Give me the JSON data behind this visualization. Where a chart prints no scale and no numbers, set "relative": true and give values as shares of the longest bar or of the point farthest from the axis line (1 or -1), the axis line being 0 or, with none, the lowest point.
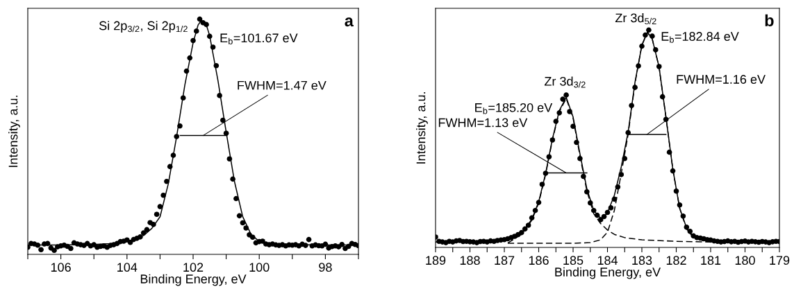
{
  "chart_data": [
    {
      "type": "scatter",
      "xlabel": "Binding Energy, eV",
      "ylabel": "Intensity, a.u.",
      "relative": true,
      "tick_labels": "x",
      "grid": false,
      "xlim": [
        107,
        97
      ],
      "xticks": [
        {
          "value": 107,
          "label": null
        },
        106,
        {
          "value": 105,
          "label": null
        },
        104,
        {
          "value": 103,
          "label": null
        },
        102,
        {
          "value": 101,
          "label": null
        },
        100,
        {
          "value": 99,
          "label": null
        },
        98,
        {
          "value": 97,
          "label": null
        }
      ],
      "annotations": [
        "a",
        "Si 2p$_{3/2}$, Si 2p$_{1/2}$",
        "E$_{b}$=101.67 eV",
        {
          "text": "FWHM=1.47 eV",
          "x": 101.7,
          "y": 0.505
        }
      ],
      "series": [
        {
          "marker": "circle",
          "color": "#000000",
          "x": [
            107.0,
            106.9,
            106.8,
            106.7,
            106.6,
            106.5,
            106.4,
            106.3,
            106.2,
            106.1,
            106.0,
            105.9,
            105.8,
            105.7,
            105.6,
            105.5,
            105.4,
            105.3,
            105.2,
            105.1,
            105.0,
            104.9,
            104.8,
            104.7,
            104.6,
            104.5,
            104.4,
            104.3,
            104.2,
            104.1,
            104.0,
            103.9,
            103.8,
            103.7,
            103.6,
            103.5,
            103.4,
            103.3,
            103.2,
            103.1,
            103.0,
            102.9,
            102.8,
            102.7,
            102.6,
            102.5,
            102.4,
            102.3,
            102.2,
            102.1,
            102.0,
            101.9,
            101.8,
            101.7,
            101.6,
            101.5,
            101.4,
            101.3,
            101.2,
            101.1,
            101.0,
            100.9,
            100.8,
            100.7,
            100.6,
            100.5,
            100.4,
            100.3,
            100.2,
            100.1,
            100.0,
            99.9,
            99.8,
            99.7,
            99.6,
            99.5,
            99.4,
            99.3,
            99.2,
            99.1,
            99.0,
            98.9,
            98.8,
            98.7,
            98.6,
            98.5,
            98.4,
            98.3,
            98.2,
            98.1,
            98.0,
            97.9,
            97.8,
            97.7,
            97.6,
            97.5,
            97.4,
            97.3,
            97.2,
            97.1,
            97.0
          ],
          "values": [
            0.03,
            0.046,
            0.044,
            0.039,
            0.02,
            0.044,
            0.046,
            0.027,
            0.017,
            0.032,
            0.036,
            0.039,
            0.034,
            0.025,
            0.049,
            0.044,
            0.041,
            0.038,
            0.046,
            0.036,
            0.041,
            0.03,
            0.034,
            0.036,
            0.03,
            0.038,
            0.041,
            0.046,
            0.054,
            0.056,
            0.061,
            0.051,
            0.063,
            0.068,
            0.074,
            0.091,
            0.105,
            0.135,
            0.127,
            0.17,
            0.203,
            0.251,
            0.31,
            0.373,
            0.421,
            0.501,
            0.546,
            0.665,
            0.779,
            0.835,
            0.909,
            0.949,
            1.0,
            0.985,
            0.977,
            0.927,
            0.881,
            0.802,
            0.675,
            0.57,
            0.515,
            0.406,
            0.32,
            0.237,
            0.164,
            0.134,
            0.112,
            0.083,
            0.073,
            0.049,
            0.054,
            0.056,
            0.044,
            0.041,
            0.044,
            0.04,
            0.038,
            0.041,
            0.036,
            0.04,
            0.039,
            0.041,
            0.036,
            0.043,
            0.038,
            0.063,
            0.036,
            0.04,
            0.037,
            0.036,
            0.043,
            0.027,
            0.033,
            0.036,
            0.032,
            0.042,
            0.025,
            0.034,
            0.046,
            0.042,
            0.037
          ]
        },
        {
          "type": "line",
          "line_style": "solid",
          "color": "#000000",
          "x": [
            107,
            106,
            105,
            104.5,
            104,
            103.75,
            103.5,
            103.25,
            103,
            102.75,
            102.5,
            102.25,
            102,
            101.85,
            101.75,
            101.6,
            101.5,
            101.25,
            101,
            100.75,
            100.5,
            100.25,
            100,
            99.5,
            98,
            97
          ],
          "values": [
            0.04,
            0.04,
            0.042,
            0.046,
            0.055,
            0.065,
            0.08,
            0.11,
            0.16,
            0.3,
            0.5,
            0.72,
            0.9,
            0.975,
            0.995,
            0.975,
            0.93,
            0.74,
            0.52,
            0.31,
            0.16,
            0.085,
            0.055,
            0.042,
            0.04,
            0.04
          ]
        },
        {
          "type": "line",
          "line_style": "solid",
          "color": "#000000",
          "x": [
            102.39,
            100.98
          ],
          "values": [
            0.505,
            0.505
          ]
        }
      ]
    },
    {
      "type": "scatter",
      "xlabel": "Binding Energy, eV",
      "ylabel": "Intensity, a.u.",
      "relative": true,
      "tick_labels": "x",
      "grid": false,
      "xlim": [
        189,
        179
      ],
      "xticks": [
        189,
        {
          "value": 188.5,
          "label": null
        },
        188,
        {
          "value": 187.5,
          "label": null
        },
        187,
        {
          "value": 186.5,
          "label": null
        },
        186,
        {
          "value": 185.5,
          "label": null
        },
        185,
        {
          "value": 184.5,
          "label": null
        },
        184,
        {
          "value": 183.5,
          "label": null
        },
        183,
        {
          "value": 182.5,
          "label": null
        },
        182,
        {
          "value": 181.5,
          "label": null
        },
        181,
        {
          "value": 180.5,
          "label": null
        },
        180,
        {
          "value": 179.5,
          "label": null
        },
        179
      ],
      "annotations": [
        "b",
        "Zr 3d$_{5/2}$",
        "E$_{b}$=182.84 eV",
        "Zr 3d$_{3/2}$",
        "E$_{b}$=185.20 eV",
        {
          "text": "FWHM=1.13 eV",
          "x": 185.2,
          "y": 0.343
        },
        {
          "text": "FWHM=1.16 eV",
          "x": 182.85,
          "y": 0.52
        }
      ],
      "series": [
        {
          "marker": "circle",
          "color": "#000000",
          "x": [
            189.0,
            188.9,
            188.8,
            188.7,
            188.6,
            188.5,
            188.4,
            188.3,
            188.2,
            188.1,
            188.0,
            187.9,
            187.8,
            187.7,
            187.6,
            187.5,
            187.4,
            187.3,
            187.2,
            187.1,
            187.0,
            186.9,
            186.8,
            186.7,
            186.6,
            186.5,
            186.4,
            186.3,
            186.2,
            186.1,
            186.0,
            185.9,
            185.8,
            185.7,
            185.6,
            185.5,
            185.4,
            185.3,
            185.2,
            185.1,
            185.0,
            184.9,
            184.8,
            184.7,
            184.6,
            184.5,
            184.4,
            184.3,
            184.2,
            184.1,
            184.0,
            183.9,
            183.8,
            183.7,
            183.6,
            183.5,
            183.4,
            183.3,
            183.2,
            183.1,
            183.0,
            182.9,
            182.8,
            182.7,
            182.6,
            182.5,
            182.4,
            182.3,
            182.2,
            182.1,
            182.0,
            181.9,
            181.8,
            181.7,
            181.6,
            181.5,
            181.4,
            181.3,
            181.2,
            181.1,
            181.0,
            180.9,
            180.8,
            180.7,
            180.6,
            180.5,
            180.4,
            180.3,
            180.2,
            180.1,
            180.0,
            179.9,
            179.8,
            179.7,
            179.6,
            179.5,
            179.4,
            179.3,
            179.2,
            179.1,
            179.0
          ],
          "values": [
            0.048,
            0.028,
            0.025,
            0.022,
            0.028,
            0.025,
            0.03,
            0.032,
            0.027,
            0.028,
            0.026,
            0.025,
            0.022,
            0.027,
            0.028,
            0.025,
            0.03,
            0.028,
            0.032,
            0.034,
            0.036,
            0.04,
            0.045,
            0.051,
            0.059,
            0.068,
            0.085,
            0.102,
            0.136,
            0.17,
            0.207,
            0.29,
            0.341,
            0.417,
            0.494,
            0.58,
            0.619,
            0.682,
            0.701,
            0.625,
            0.557,
            0.483,
            0.409,
            0.327,
            0.256,
            0.205,
            0.17,
            0.148,
            0.127,
            0.142,
            0.161,
            0.182,
            0.222,
            0.278,
            0.335,
            0.409,
            0.528,
            0.653,
            0.736,
            0.835,
            0.926,
            0.977,
            1.0,
            0.972,
            0.909,
            0.832,
            0.693,
            0.589,
            0.438,
            0.352,
            0.259,
            0.195,
            0.144,
            0.093,
            0.074,
            0.053,
            0.045,
            0.043,
            0.04,
            0.036,
            0.034,
            0.03,
            0.028,
            0.025,
            0.027,
            0.03,
            0.026,
            0.028,
            0.024,
            0.027,
            0.029,
            0.025,
            0.028,
            0.026,
            0.024,
            0.027,
            0.025,
            0.022,
            0.026,
            0.028,
            0.027
          ]
        },
        {
          "type": "line",
          "line_style": "solid",
          "color": "#000000",
          "x": [
            189,
            188,
            187,
            186.5,
            186.2,
            186,
            185.8,
            185.6,
            185.4,
            185.2,
            185,
            184.8,
            184.6,
            184.4,
            184.2,
            184.1,
            184,
            183.8,
            183.6,
            183.4,
            183.2,
            183,
            182.84,
            182.7,
            182.5,
            182.3,
            182.1,
            181.9,
            181.7,
            181.5,
            181.2,
            181,
            179
          ],
          "values": [
            0.025,
            0.025,
            0.032,
            0.065,
            0.13,
            0.21,
            0.34,
            0.5,
            0.63,
            0.69,
            0.6,
            0.43,
            0.27,
            0.17,
            0.135,
            0.14,
            0.16,
            0.24,
            0.37,
            0.53,
            0.76,
            0.93,
            0.99,
            0.96,
            0.83,
            0.6,
            0.36,
            0.18,
            0.09,
            0.05,
            0.035,
            0.03,
            0.028
          ]
        },
        {
          "type": "line",
          "line_style": "dashed",
          "color": "#000000",
          "x": [
            186.9,
            186.5,
            186.2,
            186,
            185.8,
            185.6,
            185.4,
            185.2,
            185,
            184.8,
            184.6,
            184.4,
            184.2,
            184,
            183.8,
            183.5,
            183,
            182,
            181,
            180,
            179
          ],
          "values": [
            0.02,
            0.06,
            0.125,
            0.205,
            0.335,
            0.495,
            0.625,
            0.685,
            0.595,
            0.42,
            0.26,
            0.155,
            0.11,
            0.08,
            0.06,
            0.045,
            0.035,
            0.028,
            0.025,
            0.025,
            0.025
          ]
        },
        {
          "type": "line",
          "line_style": "dashed",
          "color": "#000000",
          "x": [
            186.9,
            185,
            184.5,
            184.2,
            184,
            183.8,
            183.6,
            183.4,
            183.2,
            183,
            182.84,
            182.7,
            182.5,
            182.3,
            182.1,
            181.9,
            181.7,
            181.5,
            181.2,
            181,
            179
          ],
          "values": [
            0.019,
            0.019,
            0.022,
            0.035,
            0.07,
            0.17,
            0.34,
            0.52,
            0.755,
            0.93,
            0.99,
            0.96,
            0.83,
            0.6,
            0.36,
            0.18,
            0.085,
            0.045,
            0.03,
            0.026,
            0.025
          ]
        },
        {
          "type": "line",
          "line_style": "solid",
          "color": "#000000",
          "x": [
            185.8,
            184.6
          ],
          "values": [
            0.343,
            0.343
          ]
        },
        {
          "type": "line",
          "line_style": "solid",
          "color": "#000000",
          "x": [
            183.4,
            182.3
          ],
          "values": [
            0.52,
            0.52
          ]
        }
      ]
    }
  ]
}
